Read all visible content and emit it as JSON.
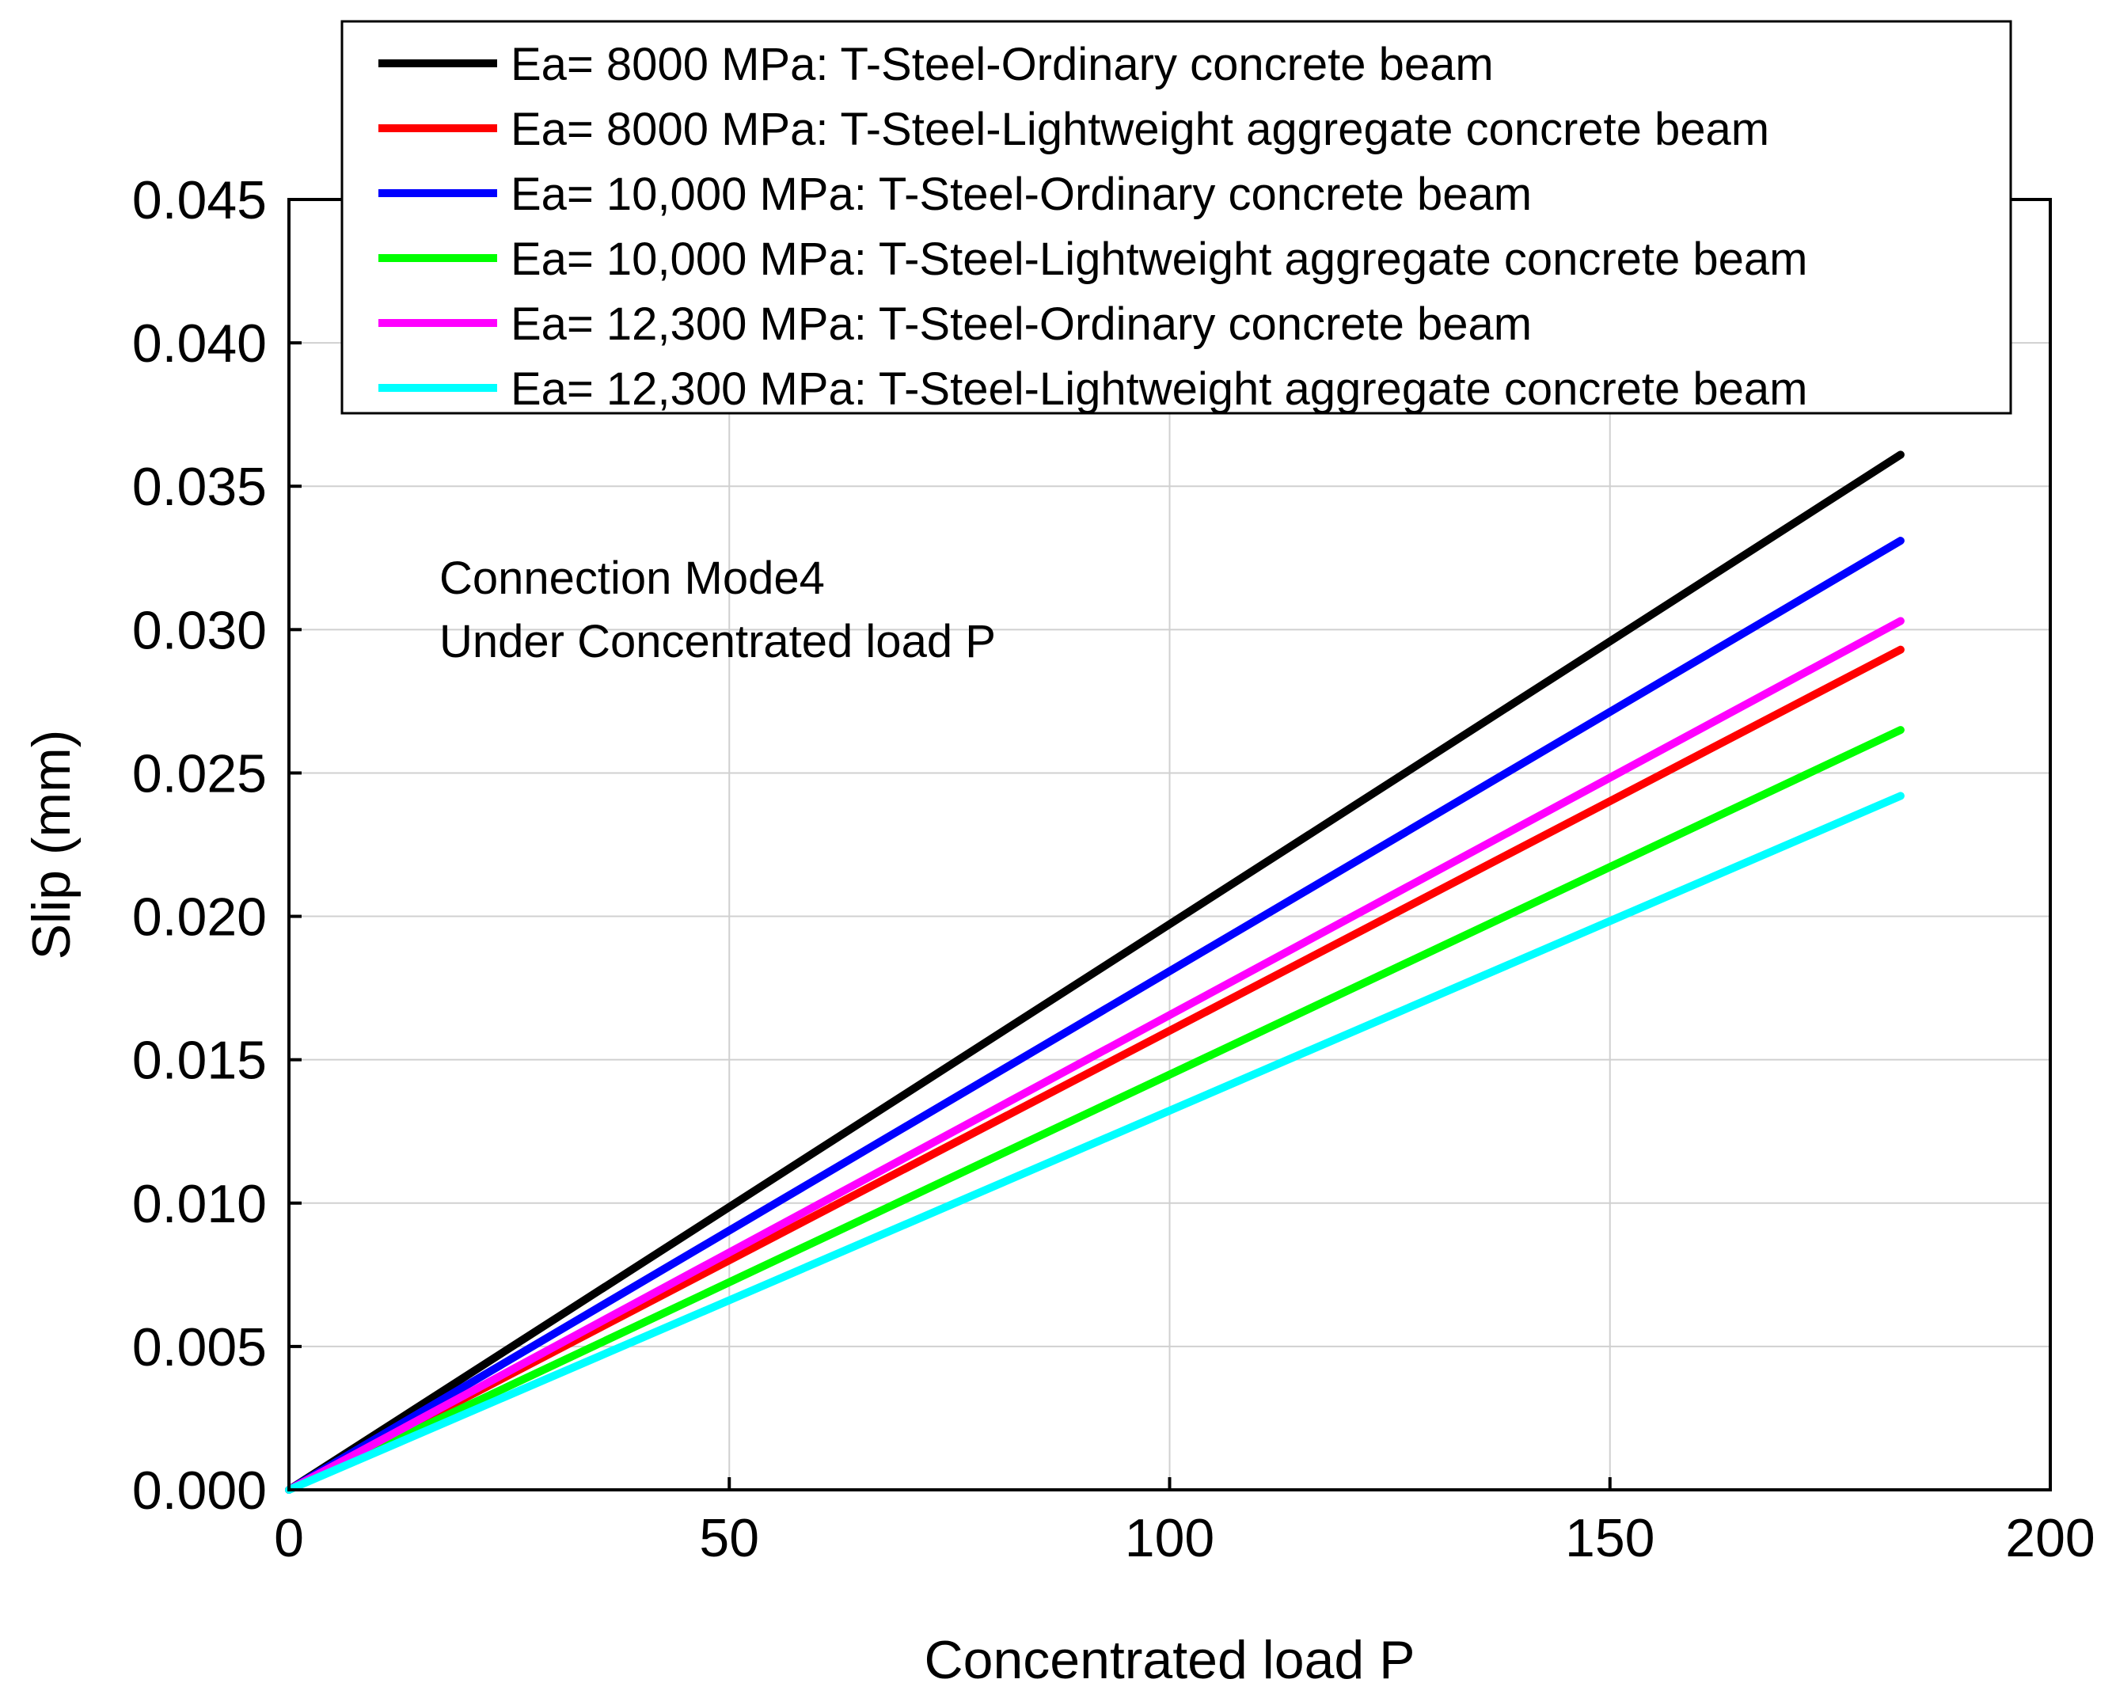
{
  "chart_data": {
    "type": "line",
    "title": "",
    "xlabel": "Concentrated load P",
    "ylabel": "Slip (mm)",
    "xlim": [
      0,
      200
    ],
    "ylim": [
      0,
      0.045
    ],
    "xticks": [
      0,
      50,
      100,
      150,
      200
    ],
    "xtick_labels": [
      "0",
      "50",
      "100",
      "150",
      "200"
    ],
    "yticks": [
      0,
      0.005,
      0.01,
      0.015,
      0.02,
      0.025,
      0.03,
      0.035,
      0.04,
      0.045
    ],
    "ytick_labels": [
      "0.000",
      "0.005",
      "0.010",
      "0.015",
      "0.020",
      "0.025",
      "0.030",
      "0.035",
      "0.040",
      "0.045"
    ],
    "grid": true,
    "legend_position": "top",
    "annotation": [
      "Connection Mode4",
      "Under Concentrated load P"
    ],
    "series": [
      {
        "name": "Ea= 8000 MPa: T-Steel-Ordinary concrete beam",
        "color": "#000000",
        "x": [
          0,
          183
        ],
        "y": [
          0,
          0.0361
        ]
      },
      {
        "name": "Ea= 8000 MPa: T-Steel-Lightweight aggregate concrete beam",
        "color": "#ff0000",
        "x": [
          0,
          183
        ],
        "y": [
          0,
          0.0293
        ]
      },
      {
        "name": "Ea= 10,000 MPa: T-Steel-Ordinary concrete beam",
        "color": "#0000ff",
        "x": [
          0,
          183
        ],
        "y": [
          0,
          0.0331
        ]
      },
      {
        "name": "Ea= 10,000 MPa: T-Steel-Lightweight aggregate concrete beam",
        "color": "#00ff00",
        "x": [
          0,
          183
        ],
        "y": [
          0,
          0.0265
        ]
      },
      {
        "name": "Ea= 12,300 MPa: T-Steel-Ordinary concrete beam",
        "color": "#ff00ff",
        "x": [
          0,
          183
        ],
        "y": [
          0,
          0.0303
        ]
      },
      {
        "name": "Ea= 12,300 MPa: T-Steel-Lightweight aggregate concrete beam",
        "color": "#00ffff",
        "x": [
          0,
          183
        ],
        "y": [
          0,
          0.0242
        ]
      }
    ]
  }
}
